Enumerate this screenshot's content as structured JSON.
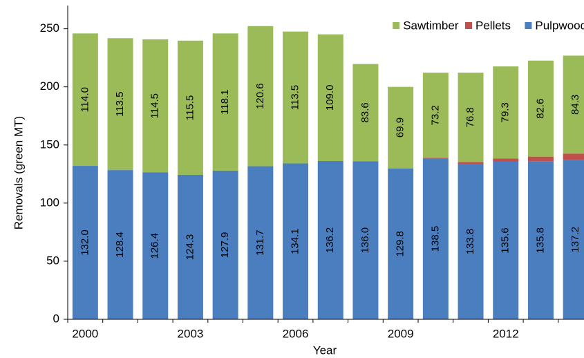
{
  "chart_data": {
    "type": "stacked_bar",
    "x_label": "Year",
    "y_label": "Removals (green MT)",
    "categories": [
      "2000",
      null,
      null,
      "2003",
      null,
      null,
      "2006",
      null,
      null,
      "2009",
      null,
      null,
      "2012",
      null,
      null
    ],
    "series": [
      {
        "name": "Pulpwood",
        "color": "#4a7ebf",
        "values": [
          132.0,
          128.4,
          126.4,
          124.3,
          127.9,
          131.7,
          134.1,
          136.2,
          136.0,
          129.8,
          138.5,
          133.8,
          135.6,
          135.8,
          137.2
        ],
        "value_labels": [
          "132.0",
          "128.4",
          "126.4",
          "124.3",
          "127.9",
          "131.7",
          "134.1",
          "136.2",
          "136.0",
          "129.8",
          "138.5",
          "133.8",
          "135.6",
          "135.8",
          "137.2"
        ]
      },
      {
        "name": "Pellets",
        "color": "#c0504d",
        "values": [
          null,
          null,
          null,
          null,
          null,
          null,
          null,
          0.0,
          0.1,
          0.3,
          0.5,
          1.6,
          2.7,
          4.2,
          5.4
        ],
        "value_labels": [
          null,
          null,
          null,
          null,
          null,
          null,
          null,
          "0.0",
          "0.1",
          "0.3",
          "0.5",
          "1.6",
          "2.7",
          "4.2",
          "5.4"
        ]
      },
      {
        "name": "Sawtimber",
        "color": "#9bbb59",
        "values": [
          114.0,
          113.5,
          114.5,
          115.5,
          118.1,
          120.6,
          113.5,
          109.0,
          83.6,
          69.9,
          73.2,
          76.8,
          79.3,
          82.6,
          84.3
        ],
        "value_labels": [
          "114.0",
          "113.5",
          "114.5",
          "115.5",
          "118.1",
          "120.6",
          "113.5",
          "109.0",
          "83.6",
          "69.9",
          "73.2",
          "76.8",
          "79.3",
          "82.6",
          "84.3"
        ]
      }
    ],
    "ylim": [
      0,
      270
    ],
    "yticks": [
      0,
      50,
      100,
      150,
      200,
      250
    ],
    "legend": "upper right"
  }
}
